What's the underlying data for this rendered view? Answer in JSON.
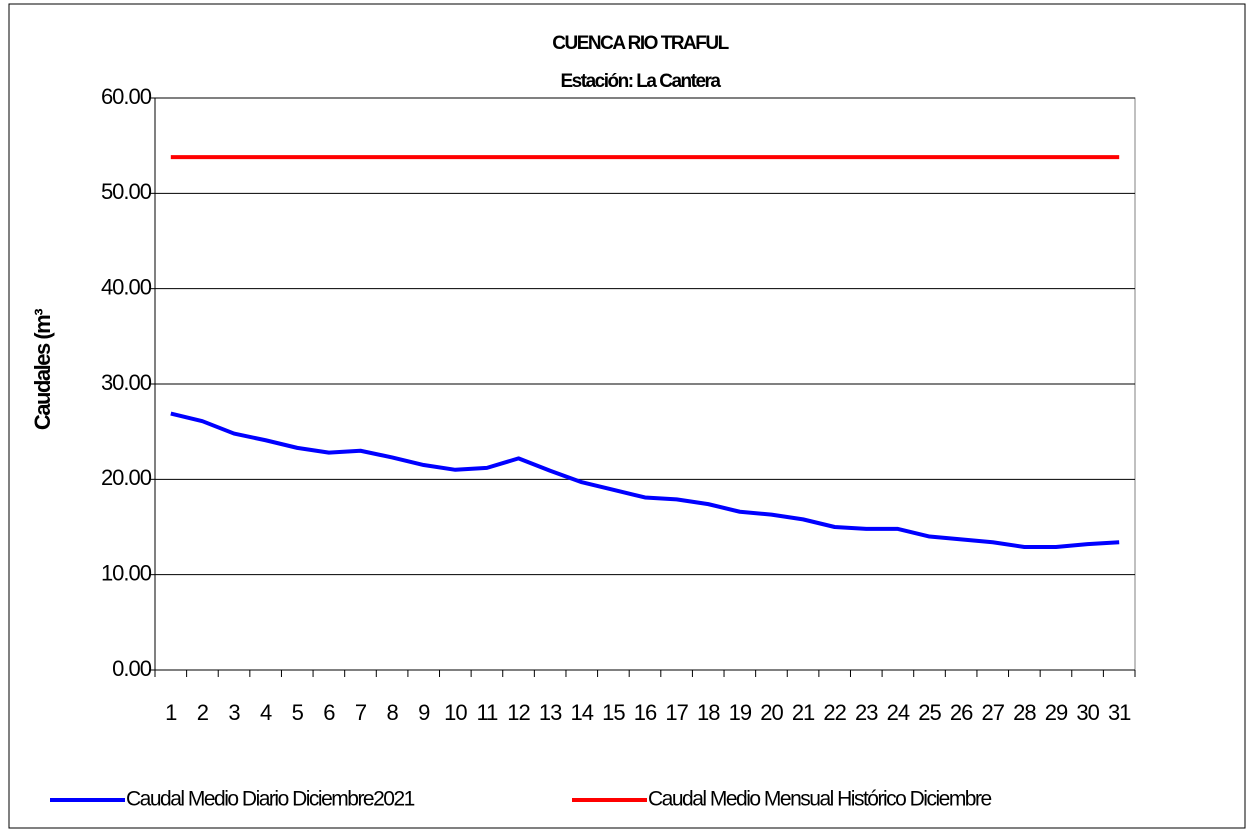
{
  "chart_data": {
    "type": "line",
    "title": "CUENCA RIO TRAFUL",
    "subtitle": "Estación: La Cantera",
    "y_label": "Caudales (m³",
    "categories": [
      "1",
      "2",
      "3",
      "4",
      "5",
      "6",
      "7",
      "8",
      "9",
      "10",
      "11",
      "12",
      "13",
      "14",
      "15",
      "16",
      "17",
      "18",
      "19",
      "20",
      "21",
      "22",
      "23",
      "24",
      "25",
      "26",
      "27",
      "28",
      "29",
      "30",
      "31"
    ],
    "series": [
      {
        "name": "Caudal Medio Diario Diciembre2021",
        "color": "#0000ff",
        "values": [
          26.9,
          26.1,
          24.8,
          24.1,
          23.3,
          22.8,
          23.0,
          22.3,
          21.5,
          21.0,
          21.2,
          22.2,
          20.9,
          19.7,
          18.9,
          18.1,
          17.9,
          17.4,
          16.6,
          16.3,
          15.8,
          15.0,
          14.8,
          14.8,
          14.0,
          13.7,
          13.4,
          12.9,
          12.9,
          13.2,
          13.4
        ]
      },
      {
        "name": "Caudal Medio Mensual Histórico Diciembre",
        "color": "#ff0000",
        "values": [
          53.8,
          53.8,
          53.8,
          53.8,
          53.8,
          53.8,
          53.8,
          53.8,
          53.8,
          53.8,
          53.8,
          53.8,
          53.8,
          53.8,
          53.8,
          53.8,
          53.8,
          53.8,
          53.8,
          53.8,
          53.8,
          53.8,
          53.8,
          53.8,
          53.8,
          53.8,
          53.8,
          53.8,
          53.8,
          53.8,
          53.8
        ]
      }
    ],
    "ylim": [
      0,
      60
    ],
    "yticks": [
      {
        "value": 0,
        "label": "0.00"
      },
      {
        "value": 10,
        "label": "10.00"
      },
      {
        "value": 20,
        "label": "20.00"
      },
      {
        "value": 30,
        "label": "30.00"
      },
      {
        "value": 40,
        "label": "40.00"
      },
      {
        "value": 50,
        "label": "50.00"
      },
      {
        "value": 60,
        "label": "60.00"
      }
    ],
    "grid": true,
    "legend": "bottom"
  }
}
